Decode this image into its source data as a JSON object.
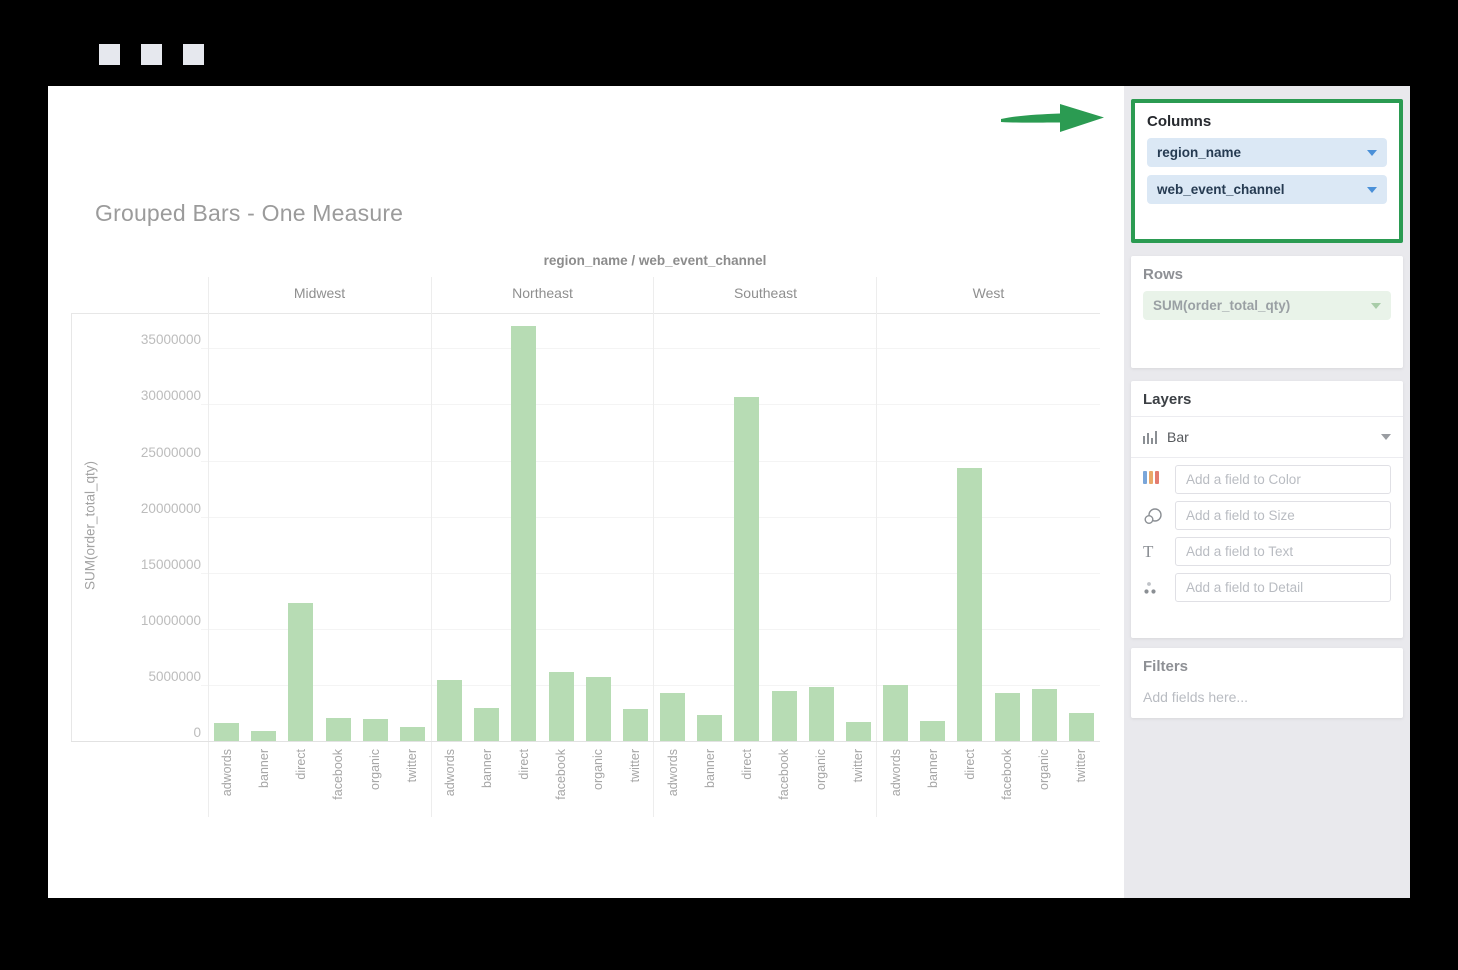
{
  "window": {
    "chrome_squares": 3
  },
  "chart": {
    "title": "Grouped Bars - One Measure",
    "subtitle": "region_name / web_event_channel",
    "y_axis_title": "SUM(order_total_qty)",
    "y_ticks": [
      "0",
      "5000000",
      "10000000",
      "15000000",
      "20000000",
      "25000000",
      "30000000",
      "35000000"
    ]
  },
  "chart_data": {
    "type": "bar",
    "title": "region_name / web_event_channel",
    "xlabel": "region_name / web_event_channel",
    "ylabel": "SUM(order_total_qty)",
    "ylim": [
      0,
      38000000
    ],
    "grid": true,
    "legend": false,
    "categories": [
      "adwords",
      "banner",
      "direct",
      "facebook",
      "organic",
      "twitter"
    ],
    "series": [
      {
        "name": "Midwest",
        "values": [
          1600000,
          900000,
          12300000,
          2050000,
          1950000,
          1250000
        ]
      },
      {
        "name": "Northeast",
        "values": [
          5400000,
          2900000,
          37000000,
          6150000,
          5700000,
          2850000
        ]
      },
      {
        "name": "Southeast",
        "values": [
          4300000,
          2300000,
          30700000,
          4500000,
          4800000,
          1700000
        ]
      },
      {
        "name": "West",
        "values": [
          5000000,
          1800000,
          24300000,
          4300000,
          4600000,
          2500000
        ]
      }
    ],
    "bar_color": "#b7dcb4"
  },
  "sidebar": {
    "columns_panel": {
      "title": "Columns",
      "highlight_color": "#2b9b52",
      "fields": [
        {
          "label": "region_name"
        },
        {
          "label": "web_event_channel"
        }
      ]
    },
    "rows_panel": {
      "title": "Rows",
      "fields": [
        {
          "label": "SUM(order_total_qty)"
        }
      ]
    },
    "layers_panel": {
      "title": "Layers",
      "layer_type_label": "Bar",
      "slots": [
        {
          "icon": "color-bars-icon",
          "placeholder": "Add a field to Color"
        },
        {
          "icon": "size-circles-icon",
          "placeholder": "Add a field to Size"
        },
        {
          "icon": "text-t-icon",
          "placeholder": "Add a field to Text"
        },
        {
          "icon": "detail-dots-icon",
          "placeholder": "Add a field to Detail"
        }
      ]
    },
    "filters_panel": {
      "title": "Filters",
      "placeholder": "Add fields here..."
    }
  },
  "colors": {
    "accent_green": "#2b9b52",
    "bar_fill": "#b7dcb4",
    "pill_blue_bg": "#dbe8f5",
    "pill_blue_caret": "#4a90d8",
    "pill_green_bg": "#e9f3e9",
    "sidebar_bg": "#e9e9ed",
    "color_icon_bars": [
      "#7aa6d9",
      "#eaa96a",
      "#e37c70"
    ]
  }
}
